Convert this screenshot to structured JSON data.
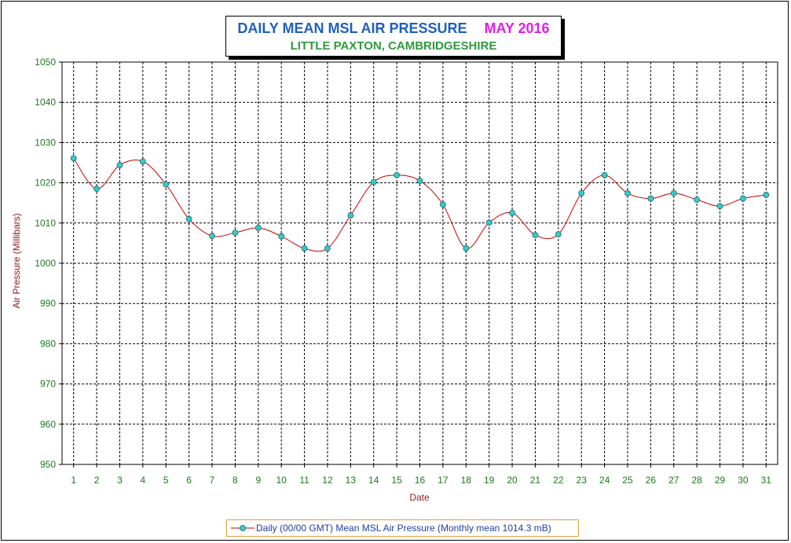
{
  "chart_data": {
    "type": "line",
    "title": "DAILY MEAN MSL AIR PRESSURE",
    "title_period": "MAY 2016",
    "subtitle": "LITTLE PAXTON, CAMBRIDGESHIRE",
    "xlabel": "Date",
    "ylabel": "Air Pressure (Millibars)",
    "ylim": [
      950,
      1050
    ],
    "y_ticks": [
      950,
      960,
      970,
      980,
      990,
      1000,
      1010,
      1020,
      1030,
      1040,
      1050
    ],
    "grid": true,
    "legend_position": "bottom",
    "categories": [
      1,
      2,
      3,
      4,
      5,
      6,
      7,
      8,
      9,
      10,
      11,
      12,
      13,
      14,
      15,
      16,
      17,
      18,
      19,
      20,
      21,
      22,
      23,
      24,
      25,
      26,
      27,
      28,
      29,
      30,
      31
    ],
    "series": [
      {
        "name": "Daily (00/00 GMT) Mean MSL Air Pressure (Monthly mean 1014.3 mB)",
        "color": "#cc0000",
        "marker_color": "#33cccc",
        "values": [
          1026.1,
          1018.5,
          1024.4,
          1025.3,
          1019.6,
          1011.0,
          1006.8,
          1007.6,
          1008.8,
          1006.7,
          1003.7,
          1003.7,
          1011.9,
          1020.2,
          1021.9,
          1020.5,
          1014.6,
          1003.7,
          1010.1,
          1012.5,
          1007.0,
          1007.2,
          1017.4,
          1021.9,
          1017.4,
          1016.1,
          1017.4,
          1015.8,
          1014.2,
          1016.1,
          1017.0
        ]
      }
    ]
  }
}
